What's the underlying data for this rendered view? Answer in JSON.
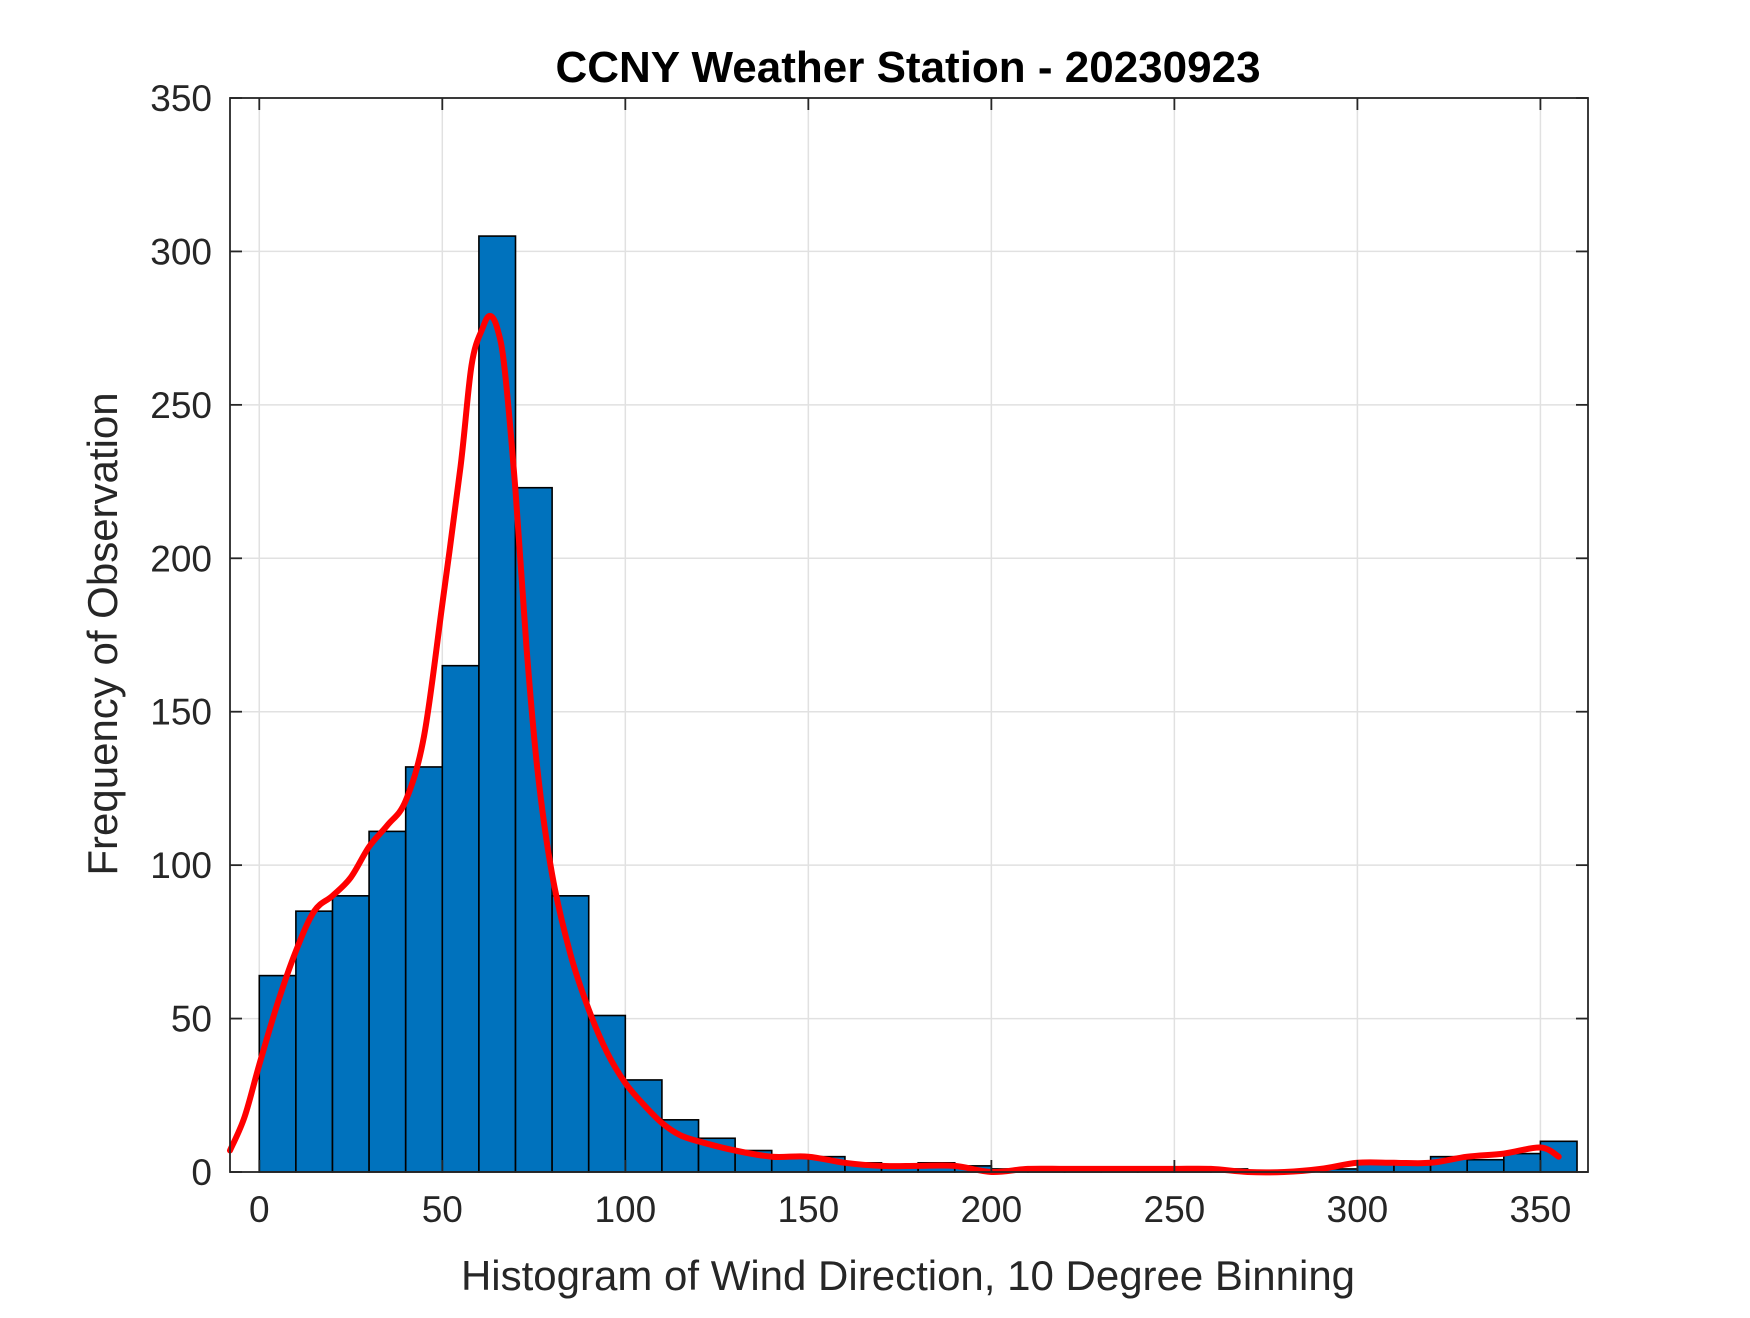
{
  "chart_data": {
    "type": "bar",
    "title": "CCNY Weather Station - 20230923",
    "xlabel": "Histogram of Wind Direction, 10 Degree Binning",
    "ylabel": "Frequency of Observation",
    "xlim": [
      -8,
      363
    ],
    "ylim": [
      0,
      350
    ],
    "xticks": [
      0,
      50,
      100,
      150,
      200,
      250,
      300,
      350
    ],
    "yticks": [
      0,
      50,
      100,
      150,
      200,
      250,
      300,
      350
    ],
    "grid": true,
    "bin_width": 10,
    "bins": [
      {
        "start": 0,
        "value": 64
      },
      {
        "start": 10,
        "value": 85
      },
      {
        "start": 20,
        "value": 90
      },
      {
        "start": 30,
        "value": 111
      },
      {
        "start": 40,
        "value": 132
      },
      {
        "start": 50,
        "value": 165
      },
      {
        "start": 60,
        "value": 305
      },
      {
        "start": 70,
        "value": 223
      },
      {
        "start": 80,
        "value": 90
      },
      {
        "start": 90,
        "value": 51
      },
      {
        "start": 100,
        "value": 30
      },
      {
        "start": 110,
        "value": 17
      },
      {
        "start": 120,
        "value": 11
      },
      {
        "start": 130,
        "value": 7
      },
      {
        "start": 140,
        "value": 5
      },
      {
        "start": 150,
        "value": 5
      },
      {
        "start": 160,
        "value": 3
      },
      {
        "start": 170,
        "value": 2
      },
      {
        "start": 180,
        "value": 3
      },
      {
        "start": 190,
        "value": 2
      },
      {
        "start": 200,
        "value": 1
      },
      {
        "start": 210,
        "value": 1
      },
      {
        "start": 220,
        "value": 1
      },
      {
        "start": 230,
        "value": 1
      },
      {
        "start": 240,
        "value": 1
      },
      {
        "start": 250,
        "value": 1
      },
      {
        "start": 260,
        "value": 1
      },
      {
        "start": 270,
        "value": 0
      },
      {
        "start": 280,
        "value": 0
      },
      {
        "start": 290,
        "value": 1
      },
      {
        "start": 300,
        "value": 3
      },
      {
        "start": 310,
        "value": 3
      },
      {
        "start": 320,
        "value": 5
      },
      {
        "start": 330,
        "value": 4
      },
      {
        "start": 340,
        "value": 6
      },
      {
        "start": 350,
        "value": 10
      }
    ],
    "series": [
      {
        "name": "Smoothed density",
        "type": "line",
        "color": "#ff0000",
        "x": [
          -8,
          -4,
          0,
          5,
          10,
          15,
          20,
          25,
          30,
          35,
          40,
          45,
          50,
          55,
          58,
          61,
          63,
          65,
          67,
          70,
          73,
          76,
          80,
          85,
          90,
          95,
          100,
          105,
          110,
          115,
          120,
          130,
          140,
          150,
          160,
          170,
          180,
          190,
          200,
          210,
          220,
          230,
          240,
          250,
          260,
          270,
          280,
          290,
          300,
          310,
          320,
          330,
          340,
          350,
          355
        ],
        "y": [
          7,
          18,
          35,
          55,
          72,
          85,
          90,
          96,
          106,
          113,
          121,
          142,
          185,
          230,
          263,
          275,
          279,
          275,
          262,
          222,
          171,
          131,
          97,
          71,
          53,
          39,
          29,
          22,
          16,
          12,
          10,
          7,
          5,
          5,
          3,
          2,
          2,
          2,
          0,
          1,
          1,
          1,
          1,
          1,
          1,
          0,
          0,
          1,
          3,
          3,
          3,
          5,
          6,
          8,
          5
        ]
      }
    ],
    "colors": {
      "bar_fill": "#0072bd",
      "bar_edge": "#000000",
      "grid": "#e1e1e1",
      "axes": "#262626"
    }
  }
}
